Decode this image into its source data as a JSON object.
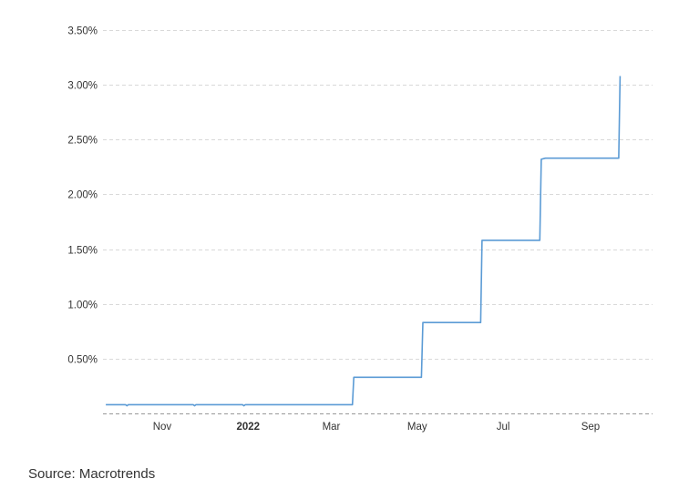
{
  "chart_data": {
    "type": "line",
    "title": "",
    "xlabel": "",
    "ylabel": "",
    "x_range": [
      "2021-09-20",
      "2022-10-15"
    ],
    "ylim": [
      0,
      3.5
    ],
    "y_ticks": [
      0.5,
      1.0,
      1.5,
      2.0,
      2.5,
      3.0,
      3.5
    ],
    "y_tick_labels": [
      "0.50%",
      "1.00%",
      "1.50%",
      "2.00%",
      "2.50%",
      "3.00%",
      "3.50%"
    ],
    "x_ticks": [
      {
        "date": "2021-11-01",
        "label": "Nov",
        "bold": false
      },
      {
        "date": "2022-01-01",
        "label": "2022",
        "bold": true
      },
      {
        "date": "2022-03-01",
        "label": "Mar",
        "bold": false
      },
      {
        "date": "2022-05-01",
        "label": "May",
        "bold": false
      },
      {
        "date": "2022-07-01",
        "label": "Jul",
        "bold": false
      },
      {
        "date": "2022-09-01",
        "label": "Sep",
        "bold": false
      }
    ],
    "grid": true,
    "line_color": "#5b9bd5",
    "series": [
      {
        "name": "",
        "points": [
          [
            "2021-09-22",
            0.08
          ],
          [
            "2021-10-06",
            0.08
          ],
          [
            "2021-10-07",
            0.07
          ],
          [
            "2021-10-08",
            0.08
          ],
          [
            "2021-11-23",
            0.08
          ],
          [
            "2021-11-24",
            0.07
          ],
          [
            "2021-11-25",
            0.08
          ],
          [
            "2021-12-28",
            0.08
          ],
          [
            "2021-12-29",
            0.07
          ],
          [
            "2021-12-30",
            0.08
          ],
          [
            "2022-03-16",
            0.08
          ],
          [
            "2022-03-17",
            0.33
          ],
          [
            "2022-05-04",
            0.33
          ],
          [
            "2022-05-05",
            0.83
          ],
          [
            "2022-06-15",
            0.83
          ],
          [
            "2022-06-16",
            1.58
          ],
          [
            "2022-07-27",
            1.58
          ],
          [
            "2022-07-28",
            2.32
          ],
          [
            "2022-07-31",
            2.33
          ],
          [
            "2022-09-21",
            2.33
          ],
          [
            "2022-09-22",
            3.08
          ]
        ]
      }
    ]
  },
  "source_text": "Source: Macrotrends"
}
